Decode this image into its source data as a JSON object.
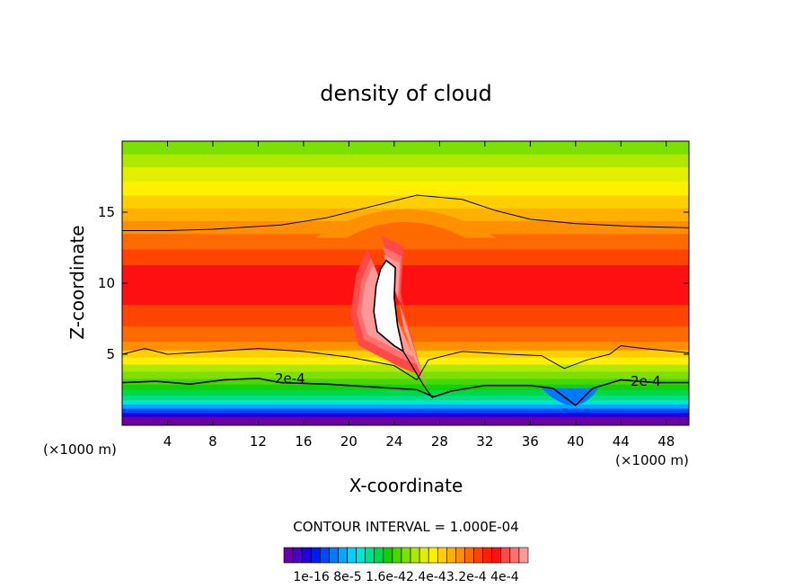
{
  "chart_data": {
    "type": "heatmap",
    "title": "density of cloud",
    "xlabel": "X-coordinate",
    "ylabel": "Z-coordinate",
    "x_unit_left": "(×1000 m)",
    "x_unit_right": "(×1000 m)",
    "xlim": [
      0,
      50
    ],
    "ylim": [
      0,
      20
    ],
    "xticks": [
      4,
      8,
      12,
      16,
      20,
      24,
      28,
      32,
      36,
      40,
      44,
      48
    ],
    "yticks": [
      5,
      10,
      15
    ],
    "contour_interval_text": "CONTOUR INTERVAL = 1.000E-04",
    "contour_labels": [
      "2e-4",
      "2e-4"
    ],
    "colorbar": {
      "labels": [
        "1e-16",
        "8e-5",
        "1.6e-4",
        "2.4e-4",
        "3.2e-4",
        "4e-4"
      ],
      "label_text": "1e-16 8e-5 1.6e-42.4e-43.2e-4 4e-4",
      "colors": [
        "#6a00a8",
        "#4b00c8",
        "#2000e0",
        "#0018ff",
        "#0048ff",
        "#0078ff",
        "#00a8ff",
        "#00d0ff",
        "#00e6d0",
        "#00e08c",
        "#00d84c",
        "#14d000",
        "#48d800",
        "#7ce000",
        "#b0e800",
        "#e0f000",
        "#fff000",
        "#ffd000",
        "#ffb000",
        "#ff9000",
        "#ff6a00",
        "#ff4400",
        "#ff2000",
        "#ff1010",
        "#ff4848",
        "#ff7070",
        "#ff9898"
      ]
    },
    "bands": [
      {
        "z_top": 0.6,
        "color": "#6a00a8"
      },
      {
        "z_top": 0.9,
        "color": "#2000e0"
      },
      {
        "z_top": 1.2,
        "color": "#0048ff"
      },
      {
        "z_top": 1.5,
        "color": "#00a8ff"
      },
      {
        "z_top": 1.8,
        "color": "#00e6d0"
      },
      {
        "z_top": 2.1,
        "color": "#00e08c"
      },
      {
        "z_top": 2.5,
        "color": "#00d84c"
      },
      {
        "z_top": 2.9,
        "color": "#14d000"
      },
      {
        "z_top": 3.3,
        "color": "#48d800"
      },
      {
        "z_top": 3.8,
        "color": "#7ce000"
      },
      {
        "z_top": 4.3,
        "color": "#b0e800"
      },
      {
        "z_top": 4.8,
        "color": "#fff000"
      },
      {
        "z_top": 5.3,
        "color": "#ffd000"
      },
      {
        "z_top": 5.9,
        "color": "#ff9000"
      },
      {
        "z_top": 7.0,
        "color": "#ff6a00"
      },
      {
        "z_top": 8.5,
        "color": "#ff4400"
      },
      {
        "z_top": 11.3,
        "color": "#ff1010"
      },
      {
        "z_top": 12.4,
        "color": "#ff4400"
      },
      {
        "z_top": 13.5,
        "color": "#ff6a00"
      },
      {
        "z_top": 14.4,
        "color": "#ff9000"
      },
      {
        "z_top": 15.3,
        "color": "#ffb000"
      },
      {
        "z_top": 16.2,
        "color": "#ffd000"
      },
      {
        "z_top": 17.2,
        "color": "#fff000"
      },
      {
        "z_top": 18.2,
        "color": "#e0f000"
      },
      {
        "z_top": 19.1,
        "color": "#b0e800"
      },
      {
        "z_top": 20.0,
        "color": "#7ce000"
      }
    ],
    "contour_low": [
      [
        0,
        3.0
      ],
      [
        3,
        3.1
      ],
      [
        6,
        2.9
      ],
      [
        9,
        3.2
      ],
      [
        12,
        3.3
      ],
      [
        14,
        3.0
      ],
      [
        18,
        2.9
      ],
      [
        22,
        2.7
      ],
      [
        26,
        2.5
      ],
      [
        27.5,
        2.0
      ],
      [
        29,
        2.4
      ],
      [
        32,
        2.8
      ],
      [
        36,
        2.8
      ],
      [
        38,
        2.6
      ],
      [
        40,
        1.4
      ],
      [
        41.5,
        2.6
      ],
      [
        44,
        3.2
      ],
      [
        47,
        3.0
      ],
      [
        50,
        3.0
      ]
    ],
    "contour_mid": [
      [
        0,
        5.0
      ],
      [
        2,
        5.4
      ],
      [
        4,
        5.0
      ],
      [
        8,
        5.2
      ],
      [
        12,
        5.4
      ],
      [
        16,
        5.2
      ],
      [
        20,
        4.8
      ],
      [
        24,
        4.2
      ],
      [
        26,
        3.2
      ],
      [
        27,
        4.6
      ],
      [
        30,
        5.2
      ],
      [
        34,
        5.0
      ],
      [
        37,
        4.9
      ],
      [
        39,
        4.0
      ],
      [
        41,
        4.6
      ],
      [
        43,
        5.0
      ],
      [
        44,
        5.6
      ],
      [
        46,
        5.4
      ],
      [
        50,
        5.1
      ]
    ],
    "contour_top": [
      [
        0,
        13.7
      ],
      [
        4,
        13.7
      ],
      [
        8,
        13.8
      ],
      [
        14,
        14.1
      ],
      [
        18,
        14.6
      ],
      [
        22,
        15.4
      ],
      [
        26,
        16.2
      ],
      [
        30,
        15.9
      ],
      [
        33,
        15.1
      ],
      [
        36,
        14.5
      ],
      [
        40,
        14.2
      ],
      [
        45,
        14.0
      ],
      [
        50,
        13.9
      ]
    ],
    "cloud_core": [
      [
        23.3,
        11.6
      ],
      [
        24.1,
        11.1
      ],
      [
        24.0,
        9.0
      ],
      [
        24.3,
        7.0
      ],
      [
        24.8,
        5.2
      ],
      [
        24.0,
        5.6
      ],
      [
        22.5,
        6.6
      ],
      [
        22.2,
        8.0
      ],
      [
        22.4,
        9.8
      ],
      [
        22.8,
        11.0
      ]
    ]
  }
}
